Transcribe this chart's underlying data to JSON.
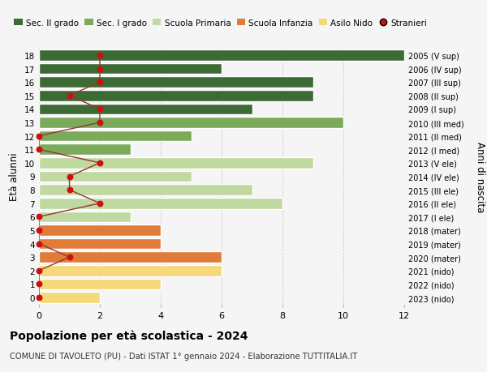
{
  "ages": [
    18,
    17,
    16,
    15,
    14,
    13,
    12,
    11,
    10,
    9,
    8,
    7,
    6,
    5,
    4,
    3,
    2,
    1,
    0
  ],
  "right_labels": [
    "2005 (V sup)",
    "2006 (IV sup)",
    "2007 (III sup)",
    "2008 (II sup)",
    "2009 (I sup)",
    "2010 (III med)",
    "2011 (II med)",
    "2012 (I med)",
    "2013 (V ele)",
    "2014 (IV ele)",
    "2015 (III ele)",
    "2016 (II ele)",
    "2017 (I ele)",
    "2018 (mater)",
    "2019 (mater)",
    "2020 (mater)",
    "2021 (nido)",
    "2022 (nido)",
    "2023 (nido)"
  ],
  "bar_values": [
    12,
    6,
    9,
    9,
    7,
    10,
    5,
    3,
    9,
    5,
    7,
    8,
    3,
    4,
    4,
    6,
    6,
    4,
    2
  ],
  "bar_colors": [
    "#3d6b35",
    "#3d6b35",
    "#3d6b35",
    "#3d6b35",
    "#3d6b35",
    "#7aaa5a",
    "#7aaa5a",
    "#7aaa5a",
    "#c0d9a0",
    "#c0d9a0",
    "#c0d9a0",
    "#c0d9a0",
    "#c0d9a0",
    "#e07b3a",
    "#e07b3a",
    "#e07b3a",
    "#f5d87a",
    "#f5d87a",
    "#f5d87a"
  ],
  "stranieri_x": [
    2,
    2,
    2,
    1,
    2,
    2,
    0,
    0,
    2,
    1,
    1,
    2,
    0,
    0,
    0,
    1,
    0,
    0,
    0
  ],
  "legend_labels": [
    "Sec. II grado",
    "Sec. I grado",
    "Scuola Primaria",
    "Scuola Infanzia",
    "Asilo Nido",
    "Stranieri"
  ],
  "legend_colors": [
    "#3d6b35",
    "#7aaa5a",
    "#c0d9a0",
    "#e07b3a",
    "#f5d87a",
    "#cc0000"
  ],
  "ylabel": "Età alunni",
  "right_ylabel": "Anni di nascita",
  "title": "Popolazione per età scolastica - 2024",
  "subtitle": "COMUNE DI TAVOLETO (PU) - Dati ISTAT 1° gennaio 2024 - Elaborazione TUTTITALIA.IT",
  "xlim": [
    0,
    12
  ],
  "background_color": "#f5f5f5",
  "grid_color": "#cccccc",
  "stranieri_color": "#cc1111",
  "stranieri_line_color": "#993333"
}
